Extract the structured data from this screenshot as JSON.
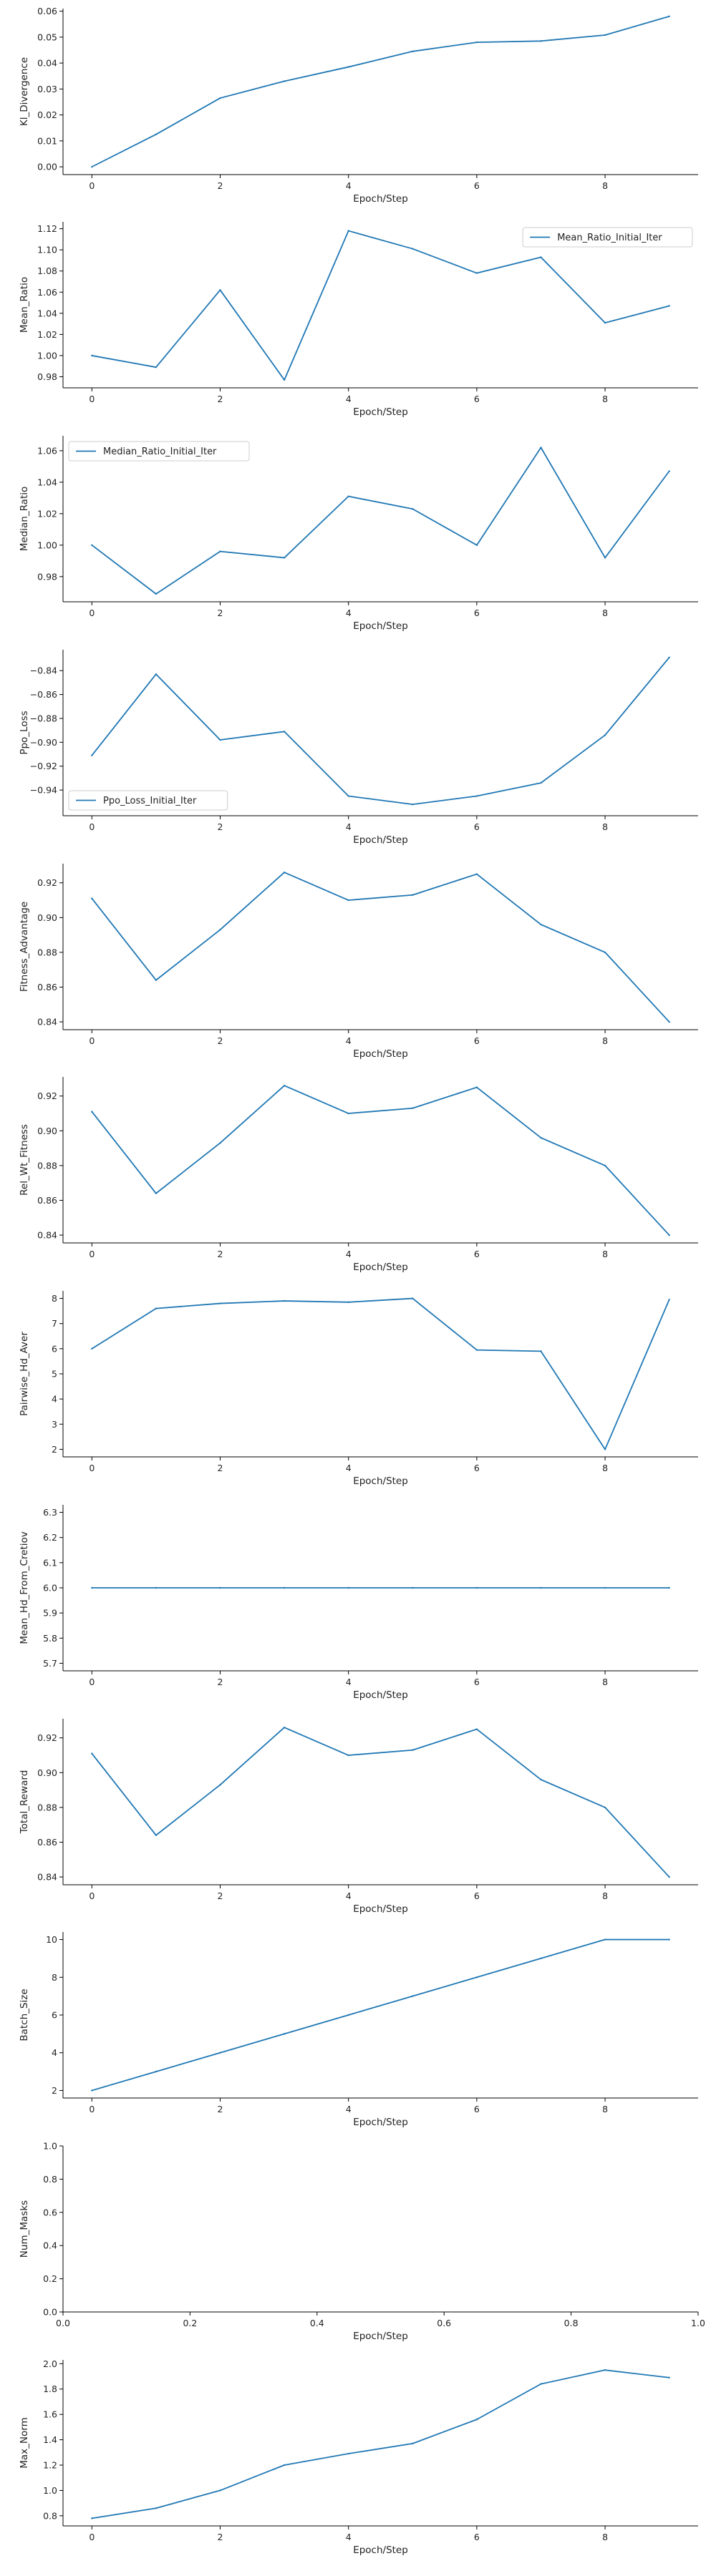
{
  "figure": {
    "colors": {
      "series": "#1f77b4",
      "axis": "#000000",
      "background": "#ffffff"
    }
  },
  "chart_data": [
    {
      "type": "line",
      "xlabel": "Epoch/Step",
      "ylabel": "Kl_Divergence",
      "x": [
        0,
        1,
        2,
        3,
        4,
        5,
        6,
        7,
        8,
        9
      ],
      "xlim": [
        -0.45,
        9.45
      ],
      "xticks": [
        0,
        2,
        4,
        6,
        8
      ],
      "ylim": [
        -0.003,
        0.061
      ],
      "yticks": [
        0,
        0.01,
        0.02,
        0.03,
        0.04,
        0.05,
        0.06
      ],
      "ytick_labels": [
        "0.00",
        "0.01",
        "0.02",
        "0.03",
        "0.04",
        "0.05",
        "0.06"
      ],
      "series": [
        {
          "values": [
            0.0,
            0.0125,
            0.0265,
            0.033,
            0.0385,
            0.0445,
            0.048,
            0.0485,
            0.0508,
            0.058
          ]
        }
      ],
      "grid": false
    },
    {
      "type": "line",
      "xlabel": "Epoch/Step",
      "ylabel": "Mean_Ratio",
      "x": [
        0,
        1,
        2,
        3,
        4,
        5,
        6,
        7,
        8,
        9
      ],
      "xlim": [
        -0.45,
        9.45
      ],
      "xticks": [
        0,
        2,
        4,
        6,
        8
      ],
      "ylim": [
        0.9695,
        1.1265
      ],
      "yticks": [
        0.98,
        1.0,
        1.02,
        1.04,
        1.06,
        1.08,
        1.1,
        1.12
      ],
      "ytick_labels": [
        "0.98",
        "1.00",
        "1.02",
        "1.04",
        "1.06",
        "1.08",
        "1.10",
        "1.12"
      ],
      "series": [
        {
          "name": "Mean_Ratio_Initial_Iter",
          "values": [
            1.0,
            0.989,
            1.062,
            0.977,
            1.118,
            1.101,
            1.078,
            1.093,
            1.031,
            1.047
          ]
        }
      ],
      "legend": "upper right",
      "grid": false
    },
    {
      "type": "line",
      "xlabel": "Epoch/Step",
      "ylabel": "Median_Ratio",
      "x": [
        0,
        1,
        2,
        3,
        4,
        5,
        6,
        7,
        8,
        9
      ],
      "xlim": [
        -0.45,
        9.45
      ],
      "xticks": [
        0,
        2,
        4,
        6,
        8
      ],
      "ylim": [
        0.964,
        1.0695
      ],
      "yticks": [
        0.98,
        1.0,
        1.02,
        1.04,
        1.06
      ],
      "ytick_labels": [
        "0.98",
        "1.00",
        "1.02",
        "1.04",
        "1.06"
      ],
      "series": [
        {
          "name": "Median_Ratio_Initial_Iter",
          "values": [
            1.0,
            0.969,
            0.996,
            0.992,
            1.031,
            1.023,
            1.0,
            1.062,
            0.992,
            1.047
          ]
        }
      ],
      "legend": "upper left",
      "grid": false
    },
    {
      "type": "line",
      "xlabel": "Epoch/Step",
      "ylabel": "Ppo_Loss",
      "x": [
        0,
        1,
        2,
        3,
        4,
        5,
        6,
        7,
        8,
        9
      ],
      "xlim": [
        -0.45,
        9.45
      ],
      "xticks": [
        0,
        2,
        4,
        6,
        8
      ],
      "ylim": [
        -0.9615,
        -0.8225
      ],
      "yticks": [
        -0.94,
        -0.92,
        -0.9,
        -0.88,
        -0.86,
        -0.84
      ],
      "ytick_labels": [
        "−0.94",
        "−0.92",
        "−0.90",
        "−0.88",
        "−0.86",
        "−0.84"
      ],
      "series": [
        {
          "name": "Ppo_Loss_Initial_Iter",
          "values": [
            -0.911,
            -0.843,
            -0.898,
            -0.891,
            -0.945,
            -0.952,
            -0.945,
            -0.934,
            -0.894,
            -0.829
          ]
        }
      ],
      "legend": "lower left",
      "grid": false
    },
    {
      "type": "line",
      "xlabel": "Epoch/Step",
      "ylabel": "Fitness_Advantage",
      "x": [
        0,
        1,
        2,
        3,
        4,
        5,
        6,
        7,
        8,
        9
      ],
      "xlim": [
        -0.45,
        9.45
      ],
      "xticks": [
        0,
        2,
        4,
        6,
        8
      ],
      "ylim": [
        0.8355,
        0.931
      ],
      "yticks": [
        0.84,
        0.86,
        0.88,
        0.9,
        0.92
      ],
      "ytick_labels": [
        "0.84",
        "0.86",
        "0.88",
        "0.90",
        "0.92"
      ],
      "series": [
        {
          "values": [
            0.911,
            0.864,
            0.893,
            0.926,
            0.91,
            0.913,
            0.925,
            0.896,
            0.88,
            0.84
          ]
        }
      ],
      "grid": false
    },
    {
      "type": "line",
      "xlabel": "Epoch/Step",
      "ylabel": "Rel_Wt_Fitness",
      "x": [
        0,
        1,
        2,
        3,
        4,
        5,
        6,
        7,
        8,
        9
      ],
      "xlim": [
        -0.45,
        9.45
      ],
      "xticks": [
        0,
        2,
        4,
        6,
        8
      ],
      "ylim": [
        0.8355,
        0.931
      ],
      "yticks": [
        0.84,
        0.86,
        0.88,
        0.9,
        0.92
      ],
      "ytick_labels": [
        "0.84",
        "0.86",
        "0.88",
        "0.90",
        "0.92"
      ],
      "series": [
        {
          "values": [
            0.911,
            0.864,
            0.893,
            0.926,
            0.91,
            0.913,
            0.925,
            0.896,
            0.88,
            0.84
          ]
        }
      ],
      "grid": false
    },
    {
      "type": "line",
      "xlabel": "Epoch/Step",
      "ylabel": "Pairwise_Hd_Aver",
      "x": [
        0,
        1,
        2,
        3,
        4,
        5,
        6,
        7,
        8,
        9
      ],
      "xlim": [
        -0.45,
        9.45
      ],
      "xticks": [
        0,
        2,
        4,
        6,
        8
      ],
      "ylim": [
        1.7,
        8.3
      ],
      "yticks": [
        2,
        3,
        4,
        5,
        6,
        7,
        8
      ],
      "ytick_labels": [
        "2",
        "3",
        "4",
        "5",
        "6",
        "7",
        "8"
      ],
      "series": [
        {
          "values": [
            6.0,
            7.6,
            7.8,
            7.9,
            7.85,
            8.0,
            5.95,
            5.9,
            2.0,
            7.95
          ]
        }
      ],
      "grid": false
    },
    {
      "type": "line",
      "xlabel": "Epoch/Step",
      "ylabel": "Mean_Hd_From_Cretiov",
      "x": [
        0,
        1,
        2,
        3,
        4,
        5,
        6,
        7,
        8,
        9
      ],
      "xlim": [
        -0.45,
        9.45
      ],
      "xticks": [
        0,
        2,
        4,
        6,
        8
      ],
      "ylim": [
        5.67,
        6.33
      ],
      "yticks": [
        5.7,
        5.8,
        5.9,
        6.0,
        6.1,
        6.2,
        6.3
      ],
      "ytick_labels": [
        "5.7",
        "5.8",
        "5.9",
        "6.0",
        "6.1",
        "6.2",
        "6.3"
      ],
      "series": [
        {
          "values": [
            6.0,
            6.0,
            6.0,
            6.0,
            6.0,
            6.0,
            6.0,
            6.0,
            6.0,
            6.0
          ]
        }
      ],
      "grid": false
    },
    {
      "type": "line",
      "xlabel": "Epoch/Step",
      "ylabel": "Total_Reward",
      "x": [
        0,
        1,
        2,
        3,
        4,
        5,
        6,
        7,
        8,
        9
      ],
      "xlim": [
        -0.45,
        9.45
      ],
      "xticks": [
        0,
        2,
        4,
        6,
        8
      ],
      "ylim": [
        0.8355,
        0.931
      ],
      "yticks": [
        0.84,
        0.86,
        0.88,
        0.9,
        0.92
      ],
      "ytick_labels": [
        "0.84",
        "0.86",
        "0.88",
        "0.90",
        "0.92"
      ],
      "series": [
        {
          "values": [
            0.911,
            0.864,
            0.893,
            0.926,
            0.91,
            0.913,
            0.925,
            0.896,
            0.88,
            0.84
          ]
        }
      ],
      "grid": false
    },
    {
      "type": "line",
      "xlabel": "Epoch/Step",
      "ylabel": "Batch_Size",
      "x": [
        0,
        1,
        2,
        3,
        4,
        5,
        6,
        7,
        8,
        9
      ],
      "xlim": [
        -0.45,
        9.45
      ],
      "xticks": [
        0,
        2,
        4,
        6,
        8
      ],
      "ylim": [
        1.6,
        10.4
      ],
      "yticks": [
        2,
        4,
        6,
        8,
        10
      ],
      "ytick_labels": [
        "2",
        "4",
        "6",
        "8",
        "10"
      ],
      "series": [
        {
          "values": [
            2,
            3,
            4,
            5,
            6,
            7,
            8,
            9,
            10,
            10
          ]
        }
      ],
      "grid": false
    },
    {
      "type": "line",
      "xlabel": "Epoch/Step",
      "ylabel": "Num_Masks",
      "x": [],
      "xlim": [
        0,
        1
      ],
      "xticks": [
        0,
        0.2,
        0.4,
        0.6,
        0.8,
        1.0
      ],
      "xtick_labels": [
        "0.0",
        "0.2",
        "0.4",
        "0.6",
        "0.8",
        "1.0"
      ],
      "ylim": [
        0,
        1
      ],
      "yticks": [
        0,
        0.2,
        0.4,
        0.6,
        0.8,
        1.0
      ],
      "ytick_labels": [
        "0.0",
        "0.2",
        "0.4",
        "0.6",
        "0.8",
        "1.0"
      ],
      "series": [],
      "grid": false
    },
    {
      "type": "line",
      "xlabel": "Epoch/Step",
      "ylabel": "Max_Norm",
      "x": [
        0,
        1,
        2,
        3,
        4,
        5,
        6,
        7,
        8,
        9
      ],
      "xlim": [
        -0.45,
        9.45
      ],
      "xticks": [
        0,
        2,
        4,
        6,
        8
      ],
      "ylim": [
        0.72,
        2.03
      ],
      "yticks": [
        0.8,
        1.0,
        1.2,
        1.4,
        1.6,
        1.8,
        2.0
      ],
      "ytick_labels": [
        "0.8",
        "1.0",
        "1.2",
        "1.4",
        "1.6",
        "1.8",
        "2.0"
      ],
      "series": [
        {
          "values": [
            0.78,
            0.86,
            1.0,
            1.2,
            1.29,
            1.37,
            1.56,
            1.84,
            1.95,
            1.89
          ]
        }
      ],
      "grid": false
    }
  ]
}
